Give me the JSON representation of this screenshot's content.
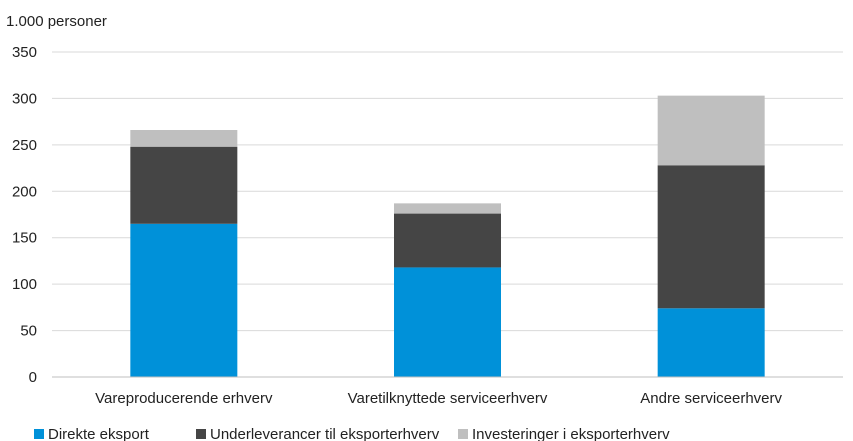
{
  "chart_data": {
    "type": "bar",
    "stacked": true,
    "ylabel": "1.000 personer",
    "ylim": [
      0,
      350
    ],
    "yticks": [
      0,
      50,
      100,
      150,
      200,
      250,
      300,
      350
    ],
    "grid": true,
    "legend_position": "bottom",
    "categories": [
      "Vareproducerende erhverv",
      "Varetilknyttede serviceerhverv",
      "Andre serviceerhverv"
    ],
    "series": [
      {
        "name": "Direkte eksport",
        "color": "#0091d9",
        "values": [
          165,
          118,
          74
        ]
      },
      {
        "name": "Underleverancer til eksporterhverv",
        "color": "#454545",
        "values": [
          83,
          58,
          154
        ]
      },
      {
        "name": "Investeringer i eksporterhverv",
        "color": "#bfbfbf",
        "values": [
          18,
          11,
          75
        ]
      }
    ]
  }
}
